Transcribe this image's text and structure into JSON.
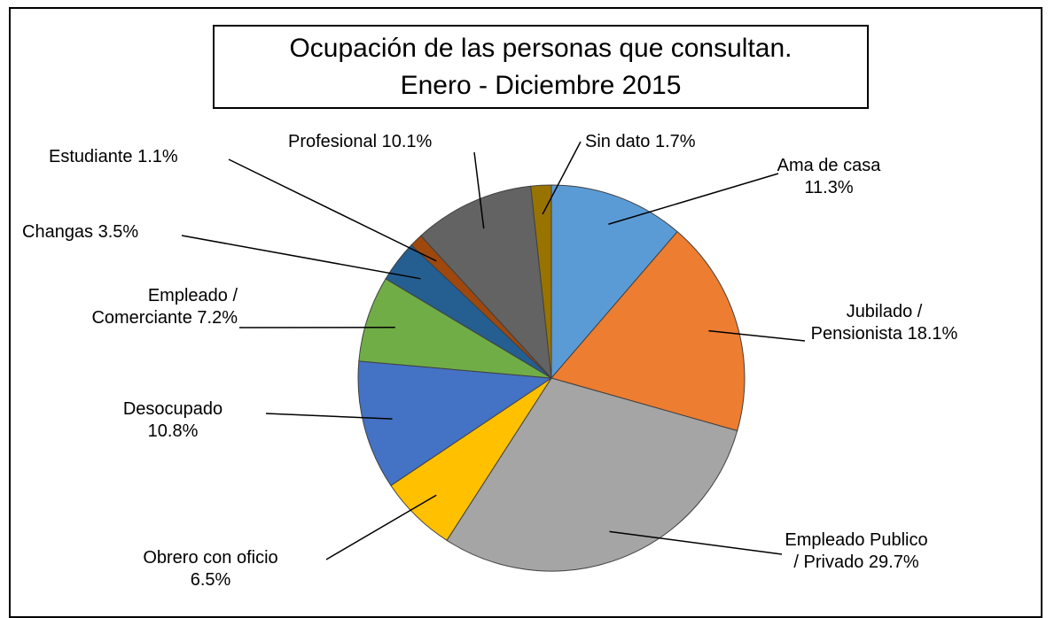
{
  "chart_data": {
    "type": "pie",
    "title": "Ocupación de las personas que consultan.",
    "subtitle": "Enero - Diciembre 2015",
    "categories": [
      "Ama de casa",
      "Jubilado / Pensionista",
      "Empleado Publico / Privado",
      "Obrero con oficio",
      "Desocupado",
      "Empleado / Comerciante",
      "Changas",
      "Estudiante",
      "Profesional",
      "Sin dato"
    ],
    "values": [
      11.3,
      18.1,
      29.7,
      6.5,
      10.8,
      7.2,
      3.5,
      1.1,
      10.1,
      1.7
    ],
    "value_labels": [
      "11.3%",
      "18.1%",
      "29.7%",
      "6.5%",
      "10.8%",
      "7.2%",
      "3.5%",
      "1.1%",
      "10.1%",
      "1.7%"
    ],
    "colors": [
      "#5b9bd5",
      "#ed7d31",
      "#a5a5a5",
      "#ffc000",
      "#4472c4",
      "#70ad47",
      "#255e91",
      "#9e480e",
      "#636363",
      "#997300"
    ]
  }
}
